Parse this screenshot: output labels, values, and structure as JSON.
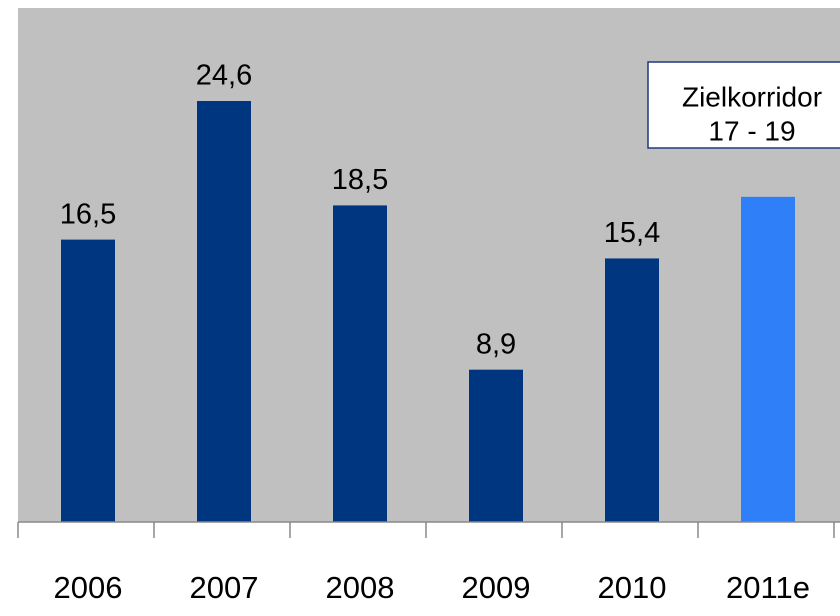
{
  "chart_data": {
    "type": "bar",
    "categories": [
      "2006",
      "2007",
      "2008",
      "2009",
      "2010",
      "2011e"
    ],
    "values": [
      16.5,
      24.6,
      18.5,
      8.9,
      15.4,
      19
    ],
    "value_labels": [
      "16,5",
      "24,6",
      "18,5",
      "8,9",
      "15,4",
      null
    ],
    "colors": [
      "#003580",
      "#003580",
      "#003580",
      "#003580",
      "#003580",
      "#2f80f8"
    ],
    "annotation": [
      "Zielkorridor",
      "17 - 19"
    ]
  }
}
